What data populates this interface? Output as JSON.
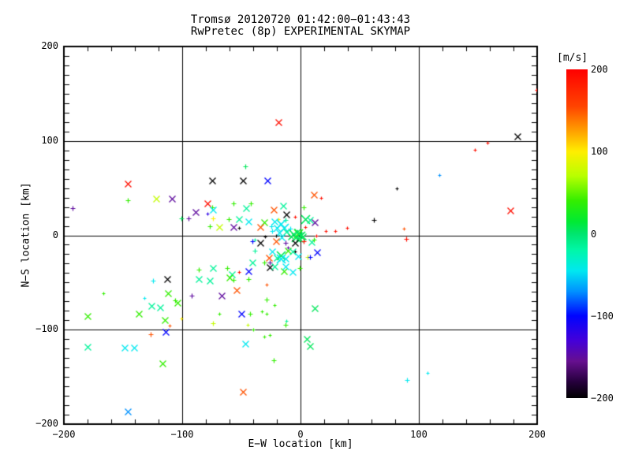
{
  "chart_data": {
    "type": "scatter",
    "title": "Tromsø 20120720 01:42:00−01:43:43",
    "subtitle": "RwPretec (8p) EXPERIMENTAL SKYMAP",
    "xlabel": "E−W location [km]",
    "ylabel": "N−S location [km]",
    "xlim": [
      -200,
      200
    ],
    "ylim": [
      -200,
      200
    ],
    "grid": true,
    "grid_lines": [
      -100,
      0,
      100
    ],
    "x_ticks": {
      "values": [
        -200,
        -100,
        0,
        100,
        200
      ],
      "labels": [
        "−200",
        "−100",
        "0",
        "100",
        "200"
      ],
      "minor_step": 20
    },
    "y_ticks": {
      "values": [
        -200,
        -100,
        0,
        100,
        200
      ],
      "labels": [
        "−200",
        "−100",
        "0",
        "100",
        "200"
      ],
      "minor_step": 10
    },
    "colorbar": {
      "label": "[m/s]",
      "min": -200,
      "max": 200,
      "tick_values": [
        200,
        100,
        0,
        -100,
        -200
      ],
      "tick_labels": [
        "200",
        "100",
        "0",
        "−100",
        "−200"
      ]
    },
    "colormap": [
      [
        200,
        "#ff0000"
      ],
      [
        155,
        "#ff4400"
      ],
      [
        130,
        "#ff9100"
      ],
      [
        100,
        "#ffee00"
      ],
      [
        70,
        "#b7ff00"
      ],
      [
        40,
        "#33ee00"
      ],
      [
        15,
        "#00ea33"
      ],
      [
        0,
        "#00e56e"
      ],
      [
        -20,
        "#00f7a8"
      ],
      [
        -45,
        "#00e8f0"
      ],
      [
        -70,
        "#0092ff"
      ],
      [
        -100,
        "#0004ff"
      ],
      [
        -130,
        "#4400d9"
      ],
      [
        -155,
        "#660f8f"
      ],
      [
        -180,
        "#26003d"
      ],
      [
        -200,
        "#000000"
      ]
    ],
    "point_format": [
      "x_km",
      "y_km",
      "velocity_ms",
      "size_class"
    ],
    "points": [
      [
        -19,
        120,
        190,
        3
      ],
      [
        183,
        105,
        -200,
        3
      ],
      [
        158,
        98,
        190,
        1
      ],
      [
        147,
        91,
        190,
        1
      ],
      [
        199,
        154,
        190,
        1
      ],
      [
        117,
        64,
        -70,
        1
      ],
      [
        81,
        50,
        -200,
        1
      ],
      [
        177,
        26,
        190,
        3
      ],
      [
        62,
        16,
        -200,
        2
      ],
      [
        87,
        7,
        150,
        1
      ],
      [
        89,
        -4,
        190,
        2
      ],
      [
        90,
        -153,
        -45,
        2
      ],
      [
        107,
        -146,
        -45,
        1
      ],
      [
        -146,
        55,
        190,
        3
      ],
      [
        -193,
        29,
        -150,
        2
      ],
      [
        -146,
        37,
        40,
        2
      ],
      [
        -122,
        39,
        75,
        3
      ],
      [
        -109,
        39,
        -150,
        3
      ],
      [
        -101,
        18,
        5,
        2
      ],
      [
        -146,
        -187,
        -70,
        3
      ],
      [
        -49,
        -166,
        150,
        3
      ],
      [
        -75,
        58,
        -200,
        3
      ],
      [
        -49,
        58,
        -200,
        3
      ],
      [
        -28,
        58,
        -100,
        3
      ],
      [
        -47,
        73,
        5,
        2
      ],
      [
        -79,
        34,
        190,
        3
      ],
      [
        -75,
        30,
        40,
        2
      ],
      [
        -89,
        25,
        -150,
        3
      ],
      [
        -74,
        27,
        -45,
        3
      ],
      [
        -57,
        34,
        40,
        2
      ],
      [
        -46,
        29,
        -15,
        3
      ],
      [
        -42,
        34,
        40,
        2
      ],
      [
        -79,
        23,
        -120,
        1
      ],
      [
        -23,
        27,
        150,
        3
      ],
      [
        11,
        43,
        150,
        3
      ],
      [
        17,
        40,
        190,
        1
      ],
      [
        -15,
        31,
        -15,
        3
      ],
      [
        3,
        30,
        40,
        2
      ],
      [
        -95,
        18,
        -150,
        2
      ],
      [
        -74,
        18,
        100,
        2
      ],
      [
        -61,
        17,
        40,
        2
      ],
      [
        -52,
        17,
        -15,
        3
      ],
      [
        -44,
        15,
        -45,
        3
      ],
      [
        -31,
        14,
        40,
        3
      ],
      [
        -34,
        9,
        150,
        3
      ],
      [
        -77,
        10,
        40,
        2
      ],
      [
        -69,
        9,
        75,
        3
      ],
      [
        -57,
        9,
        -150,
        3
      ],
      [
        -52,
        8,
        -200,
        1
      ],
      [
        -12,
        22,
        -200,
        3
      ],
      [
        -5,
        20,
        190,
        1
      ],
      [
        4,
        17,
        5,
        4
      ],
      [
        8,
        16,
        -15,
        3
      ],
      [
        12,
        14,
        -150,
        3
      ],
      [
        -19,
        17,
        100,
        1
      ],
      [
        -13,
        16,
        -15,
        2
      ],
      [
        4,
        9,
        190,
        1
      ],
      [
        -22,
        15,
        -45,
        3
      ],
      [
        -17,
        12,
        -45,
        4
      ],
      [
        -20,
        8,
        -45,
        3
      ],
      [
        -24,
        5,
        -45,
        2
      ],
      [
        -14,
        8,
        -45,
        4
      ],
      [
        -18,
        3,
        -45,
        3
      ],
      [
        -12,
        4,
        -15,
        3
      ],
      [
        -9,
        7,
        -45,
        2
      ],
      [
        -16,
        -2,
        -45,
        3
      ],
      [
        -25,
        10,
        -45,
        2
      ],
      [
        -2,
        2,
        40,
        4
      ],
      [
        0,
        0,
        5,
        4
      ],
      [
        -4,
        -2,
        5,
        4
      ],
      [
        2,
        -1,
        5,
        3
      ],
      [
        -1,
        -4,
        5,
        3
      ],
      [
        -6,
        1,
        5,
        4
      ],
      [
        1,
        3,
        5,
        2
      ],
      [
        -3,
        4,
        5,
        3
      ],
      [
        -8,
        -1,
        5,
        3
      ],
      [
        -21,
        0,
        -200,
        1
      ],
      [
        -30,
        -1,
        -200,
        1
      ],
      [
        13,
        0,
        190,
        1
      ],
      [
        21,
        5,
        190,
        1
      ],
      [
        29,
        5,
        190,
        1
      ],
      [
        39,
        8,
        190,
        1
      ],
      [
        3,
        -6,
        190,
        2
      ],
      [
        -41,
        -6,
        -100,
        2
      ],
      [
        -39,
        -5,
        -15,
        1
      ],
      [
        -34,
        -8,
        -200,
        3
      ],
      [
        -21,
        -6,
        150,
        3
      ],
      [
        -13,
        -8,
        -150,
        2
      ],
      [
        -5,
        -8,
        -200,
        3
      ],
      [
        9,
        -7,
        -15,
        3
      ],
      [
        11,
        -5,
        40,
        2
      ],
      [
        -11,
        -13,
        -150,
        1
      ],
      [
        -5,
        -17,
        -200,
        1
      ],
      [
        14,
        -18,
        -100,
        3
      ],
      [
        -39,
        -16,
        -15,
        2
      ],
      [
        -24,
        -17,
        -45,
        3
      ],
      [
        -11,
        -16,
        40,
        3
      ],
      [
        -7,
        -17,
        -15,
        3
      ],
      [
        -17,
        -21,
        5,
        4
      ],
      [
        -20,
        -24,
        -15,
        3
      ],
      [
        -2,
        -22,
        -45,
        3
      ],
      [
        6,
        -23,
        75,
        2
      ],
      [
        8,
        -23,
        -100,
        2
      ],
      [
        -27,
        -24,
        150,
        3
      ],
      [
        -17,
        -25,
        -45,
        4
      ],
      [
        -13,
        -25,
        -45,
        3
      ],
      [
        -26,
        -29,
        -150,
        2
      ],
      [
        -26,
        -34,
        -200,
        3
      ],
      [
        -41,
        -29,
        -15,
        3
      ],
      [
        -31,
        -29,
        40,
        2
      ],
      [
        -22,
        -33,
        -15,
        3
      ],
      [
        -14,
        -38,
        40,
        3
      ],
      [
        -7,
        -39,
        -45,
        3
      ],
      [
        -13,
        -33,
        -45,
        3
      ],
      [
        -1,
        -35,
        40,
        2
      ],
      [
        -52,
        -39,
        190,
        1
      ],
      [
        -44,
        -38,
        -100,
        3
      ],
      [
        -86,
        -36,
        40,
        2
      ],
      [
        -74,
        -35,
        -15,
        3
      ],
      [
        -62,
        -35,
        40,
        2
      ],
      [
        -58,
        -41,
        -15,
        3
      ],
      [
        -60,
        -45,
        40,
        3
      ],
      [
        -57,
        -47,
        40,
        2
      ],
      [
        -86,
        -46,
        -15,
        3
      ],
      [
        -77,
        -48,
        -15,
        3
      ],
      [
        -44,
        -46,
        40,
        2
      ],
      [
        -29,
        -52,
        150,
        1
      ],
      [
        -54,
        -58,
        150,
        3
      ],
      [
        -125,
        -48,
        -45,
        2
      ],
      [
        -113,
        -46,
        -200,
        3
      ],
      [
        -167,
        -61,
        40,
        1
      ],
      [
        -112,
        -61,
        40,
        3
      ],
      [
        -132,
        -66,
        -45,
        1
      ],
      [
        -92,
        -64,
        -150,
        2
      ],
      [
        -126,
        -75,
        -15,
        3
      ],
      [
        -119,
        -76,
        -15,
        3
      ],
      [
        -104,
        -71,
        40,
        3
      ],
      [
        -106,
        -69,
        40,
        2
      ],
      [
        -137,
        -83,
        40,
        3
      ],
      [
        -115,
        -90,
        40,
        3
      ],
      [
        -101,
        -88,
        100,
        1
      ],
      [
        -111,
        -96,
        150,
        1
      ],
      [
        -180,
        -86,
        40,
        3
      ],
      [
        -67,
        -64,
        -150,
        3
      ],
      [
        -29,
        -68,
        40,
        2
      ],
      [
        -22,
        -74,
        40,
        1
      ],
      [
        -69,
        -83,
        40,
        1
      ],
      [
        -50,
        -83,
        -100,
        3
      ],
      [
        -43,
        -83,
        40,
        2
      ],
      [
        -33,
        -81,
        40,
        1
      ],
      [
        -29,
        -83,
        40,
        1
      ],
      [
        -74,
        -93,
        75,
        2
      ],
      [
        -45,
        -95,
        75,
        1
      ],
      [
        -40,
        -100,
        40,
        1
      ],
      [
        -12,
        -91,
        -15,
        1
      ],
      [
        -13,
        -95,
        40,
        2
      ],
      [
        12,
        -77,
        5,
        3
      ],
      [
        -127,
        -105,
        150,
        2
      ],
      [
        -114,
        -102,
        -100,
        3
      ],
      [
        -180,
        -118,
        -15,
        3
      ],
      [
        -149,
        -119,
        -45,
        3
      ],
      [
        -141,
        -119,
        -45,
        3
      ],
      [
        -117,
        -136,
        40,
        3
      ],
      [
        -31,
        -107,
        40,
        1
      ],
      [
        -26,
        -106,
        40,
        1
      ],
      [
        -47,
        -115,
        -45,
        3
      ],
      [
        5,
        -110,
        5,
        3
      ],
      [
        8,
        -117,
        5,
        3
      ],
      [
        -23,
        -132,
        40,
        2
      ]
    ]
  }
}
